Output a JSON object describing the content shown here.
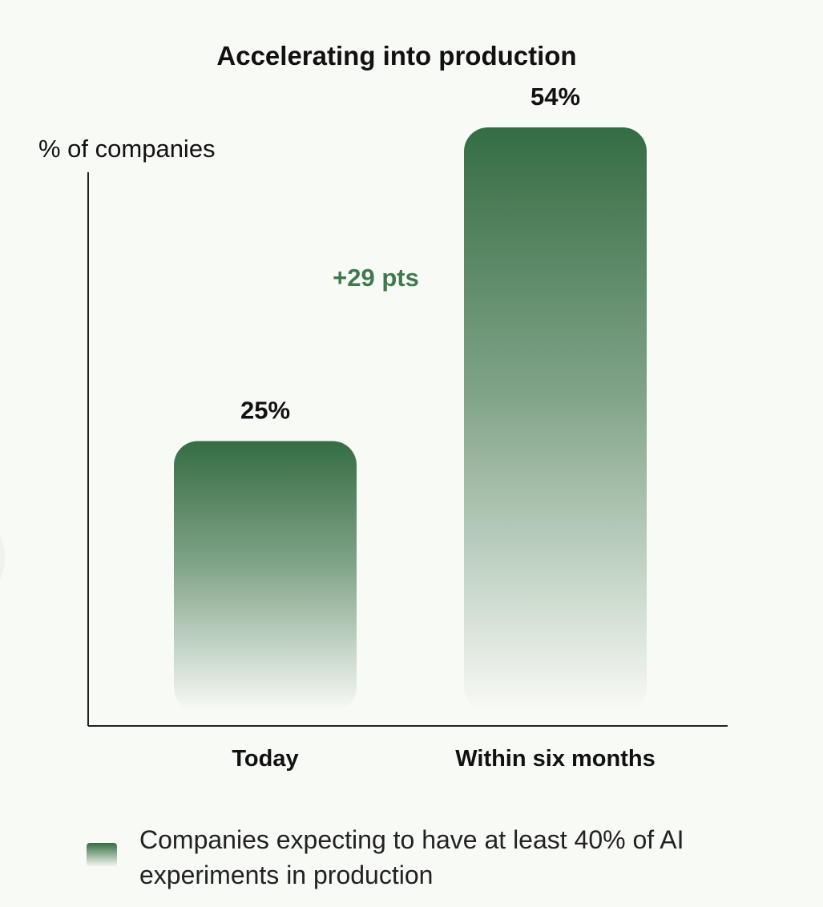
{
  "chart_data": {
    "type": "bar",
    "title": "Accelerating into production",
    "ylabel": "% of companies",
    "xlabel": "",
    "categories": [
      "Today",
      "Within six months"
    ],
    "series": [
      {
        "name": "Companies expecting to have at least 40% of AI experiments in production",
        "values": [
          25,
          54
        ]
      }
    ],
    "data_labels": [
      "25%",
      "54%"
    ],
    "annotation": "+29 pts",
    "ylim": [
      0,
      80
    ],
    "grid": false,
    "legend_position": "bottom-left"
  },
  "colors": {
    "bar": "#356d43",
    "annotation": "#3e7a4d",
    "axis": "#222222",
    "background": "#f8faf6"
  }
}
